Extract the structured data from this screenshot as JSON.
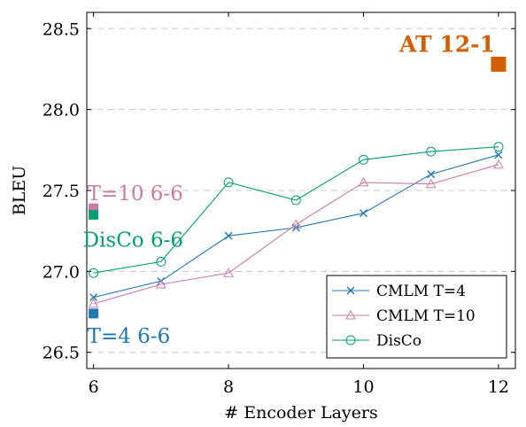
{
  "chart_data": {
    "type": "line",
    "xlabel": "# Encoder Layers",
    "ylabel": "BLEU",
    "xlim": [
      5.9,
      12.25
    ],
    "ylim": [
      26.4,
      28.6
    ],
    "x_ticks": [
      6,
      8,
      10,
      12
    ],
    "y_ticks": [
      26.5,
      27.0,
      27.5,
      28.0,
      28.5
    ],
    "x_tick_labels": [
      "6",
      "8",
      "10",
      "12"
    ],
    "y_tick_labels": [
      "26.5",
      "27.0",
      "27.5",
      "28.0",
      "28.5"
    ],
    "grid": "horizontal dashed",
    "legend_position": "bottom-right",
    "series": [
      {
        "name": "CMLM T=4",
        "color": "#1f77b4",
        "marker": "x",
        "x": [
          6,
          7,
          8,
          9,
          10,
          11,
          12
        ],
        "y": [
          26.84,
          26.94,
          27.22,
          27.27,
          27.36,
          27.6,
          27.72
        ]
      },
      {
        "name": "CMLM T=10",
        "color": "#cc79a7",
        "marker": "triangle",
        "x": [
          6,
          7,
          8,
          9,
          10,
          11,
          12
        ],
        "y": [
          26.8,
          26.92,
          26.99,
          27.29,
          27.55,
          27.54,
          27.66
        ]
      },
      {
        "name": "DisCo",
        "color": "#009e73",
        "marker": "circle",
        "x": [
          6,
          7,
          8,
          9,
          10,
          11,
          12
        ],
        "y": [
          26.99,
          27.06,
          27.55,
          27.44,
          27.69,
          27.74,
          27.77
        ]
      }
    ],
    "points": [
      {
        "label": "AT 12-1",
        "x": 12,
        "y": 28.28,
        "color": "#d55e00"
      },
      {
        "label": "T=10 6-6",
        "x": 6,
        "y": 27.39,
        "color": "#cc79a7"
      },
      {
        "label": "DisCo 6-6",
        "x": 6,
        "y": 27.35,
        "color": "#009e73"
      },
      {
        "label": "T=4 6-6",
        "x": 6,
        "y": 26.74,
        "color": "#1f77b4"
      }
    ]
  }
}
